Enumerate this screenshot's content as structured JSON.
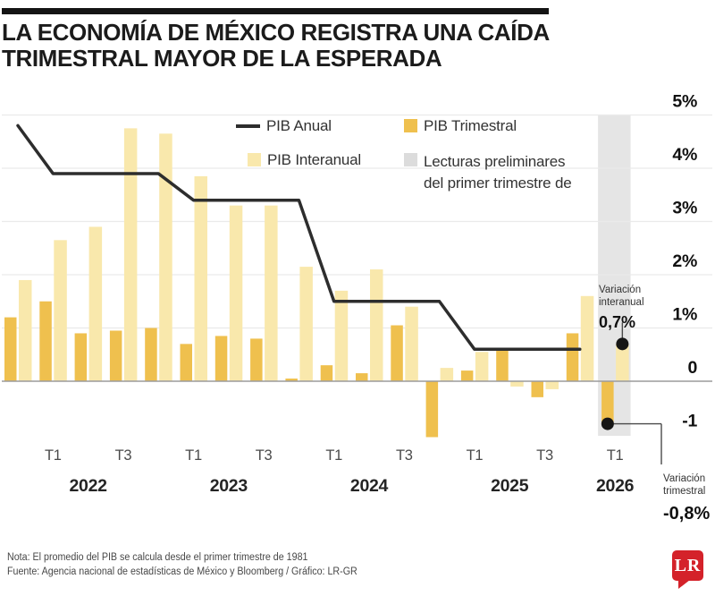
{
  "title": {
    "line1": "LA ECONOMÍA DE MÉXICO REGISTRA UNA CAÍDA",
    "line2": "TRIMESTRAL MAYOR DE LA ESPERADA"
  },
  "legend": {
    "items": [
      {
        "label": "PIB Anual",
        "swatch": "line",
        "color": "#2d2d2d"
      },
      {
        "label": "PIB Trimestral",
        "swatch": "square",
        "color": "#efc04e"
      },
      {
        "label": "PIB Interanual",
        "swatch": "square",
        "color": "#f9e8ac"
      },
      {
        "label": "Lecturas preliminares del primer trimestre de",
        "swatch": "square",
        "color": "#dcdcdc"
      }
    ]
  },
  "chart_data": {
    "type": "bar",
    "quarters": [
      "T4 2021",
      "T1 2022",
      "T2 2022",
      "T3 2022",
      "T4 2022",
      "T1 2023",
      "T2 2023",
      "T3 2023",
      "T4 2023",
      "T1 2024",
      "T2 2024",
      "T3 2024",
      "T4 2024",
      "T1 2025",
      "T2 2025",
      "T3 2025",
      "T4 2025",
      "T1 2026"
    ],
    "series": [
      {
        "name": "PIB Trimestral",
        "type": "bar",
        "color": "#efc04e",
        "values": [
          1.2,
          1.5,
          0.9,
          0.95,
          1.0,
          0.7,
          0.85,
          0.8,
          0.05,
          0.3,
          0.15,
          1.05,
          -1.05,
          0.2,
          0.6,
          -0.3,
          0.9,
          -0.8
        ]
      },
      {
        "name": "PIB Interanual",
        "type": "bar",
        "color": "#f9e8ac",
        "values": [
          1.9,
          2.65,
          2.9,
          4.75,
          4.65,
          3.85,
          3.3,
          3.3,
          2.15,
          1.7,
          2.1,
          1.4,
          0.25,
          0.55,
          -0.1,
          -0.15,
          1.6,
          0.7
        ]
      },
      {
        "name": "PIB Anual",
        "type": "line",
        "color": "#2d2d2d",
        "points": [
          {
            "quarter": "T4 2021",
            "value": 4.8
          },
          {
            "quarter": "T1 2022",
            "value": 3.9
          },
          {
            "quarter": "T4 2022",
            "value": 3.9
          },
          {
            "quarter": "T1 2023",
            "value": 3.4
          },
          {
            "quarter": "T4 2023",
            "value": 3.4
          },
          {
            "quarter": "T1 2024",
            "value": 1.5
          },
          {
            "quarter": "T4 2024",
            "value": 1.5
          },
          {
            "quarter": "T1 2025",
            "value": 0.6
          },
          {
            "quarter": "T4 2025",
            "value": 0.6
          }
        ]
      }
    ],
    "y_ticks": [
      {
        "label": "5%",
        "value": 5
      },
      {
        "label": "4%",
        "value": 4
      },
      {
        "label": "3%",
        "value": 3
      },
      {
        "label": "2%",
        "value": 2
      },
      {
        "label": "1%",
        "value": 1
      },
      {
        "label": "0",
        "value": 0
      },
      {
        "label": "-1",
        "value": -1
      }
    ],
    "x_ticks": [
      {
        "label": "T1",
        "quarter": "T1 2022"
      },
      {
        "label": "T3",
        "quarter": "T3 2022"
      },
      {
        "label": "T1",
        "quarter": "T1 2023"
      },
      {
        "label": "T3",
        "quarter": "T3 2023"
      },
      {
        "label": "T1",
        "quarter": "T1 2024"
      },
      {
        "label": "T3",
        "quarter": "T3 2024"
      },
      {
        "label": "T1",
        "quarter": "T1 2025"
      },
      {
        "label": "T3",
        "quarter": "T3 2025"
      },
      {
        "label": "T1",
        "quarter": "T1 2026"
      }
    ],
    "year_labels": [
      {
        "label": "2022",
        "center_quarter": "T2 2022"
      },
      {
        "label": "2023",
        "center_quarter": "T2 2023"
      },
      {
        "label": "2024",
        "center_quarter": "T2 2024"
      },
      {
        "label": "2025",
        "center_quarter": "T2 2025"
      },
      {
        "label": "2026",
        "center_quarter": "T1 2026"
      }
    ],
    "highlight_band": {
      "quarter": "T1 2026",
      "color": "#e5e5e5"
    },
    "ylim": [
      -1.35,
      5.2
    ],
    "grid": "horizontal-faint"
  },
  "annotations": {
    "interanual": {
      "line1": "Variación",
      "line2": "interanual",
      "value": "0,7%",
      "series": "PIB Interanual",
      "quarter": "T1 2026"
    },
    "trimestral": {
      "line1": "Variación",
      "line2": "trimestral",
      "value": "-0,8%",
      "series": "PIB Trimestral",
      "quarter": "T1 2026"
    }
  },
  "footer": {
    "nota": "Nota: El promedio del PIB se calcula desde el primer trimestre de 1981",
    "fuente": "Fuente: Agencia nacional de estadísticas de México y Bloomberg / Gráfico: LR-GR",
    "logo_text": "LR"
  },
  "colors": {
    "bar_trimestral": "#efc04e",
    "bar_interanual": "#f9e8ac",
    "line_anual": "#2d2d2d",
    "band": "#e5e5e5",
    "zero_line": "#9b9b9b",
    "gridline": "#eaeaea",
    "logo_red": "#d4222a",
    "dot": "#161616"
  }
}
